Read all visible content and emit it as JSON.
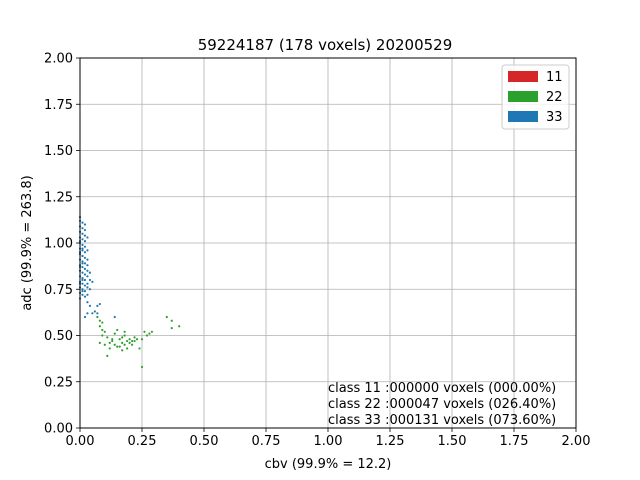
{
  "chart_data": {
    "type": "scatter",
    "title": "59224187 (178 voxels) 20200529",
    "xlabel": "cbv (99.9% = 12.2)",
    "ylabel": "adc (99.9% = 263.8)",
    "xlim": [
      0,
      2
    ],
    "ylim": [
      0,
      2
    ],
    "xticks": [
      "0.00",
      "0.25",
      "0.50",
      "0.75",
      "1.00",
      "1.25",
      "1.50",
      "1.75",
      "2.00"
    ],
    "yticks": [
      "0.00",
      "0.25",
      "0.50",
      "0.75",
      "1.00",
      "1.25",
      "1.50",
      "1.75",
      "2.00"
    ],
    "grid": true,
    "legend_position": "top-right",
    "series": [
      {
        "name": "11",
        "color": "#d62728",
        "points": []
      },
      {
        "name": "22",
        "color": "#2ca02c",
        "points": [
          [
            0.07,
            0.6
          ],
          [
            0.08,
            0.58
          ],
          [
            0.08,
            0.55
          ],
          [
            0.09,
            0.53
          ],
          [
            0.09,
            0.5
          ],
          [
            0.1,
            0.52
          ],
          [
            0.11,
            0.49
          ],
          [
            0.11,
            0.39
          ],
          [
            0.12,
            0.46
          ],
          [
            0.13,
            0.47
          ],
          [
            0.14,
            0.45
          ],
          [
            0.15,
            0.53
          ],
          [
            0.16,
            0.48
          ],
          [
            0.16,
            0.44
          ],
          [
            0.17,
            0.46
          ],
          [
            0.17,
            0.49
          ],
          [
            0.18,
            0.52
          ],
          [
            0.18,
            0.5
          ],
          [
            0.18,
            0.45
          ],
          [
            0.19,
            0.43
          ],
          [
            0.2,
            0.46
          ],
          [
            0.21,
            0.47
          ],
          [
            0.21,
            0.45
          ],
          [
            0.22,
            0.49
          ],
          [
            0.22,
            0.47
          ],
          [
            0.23,
            0.48
          ],
          [
            0.24,
            0.43
          ],
          [
            0.25,
            0.48
          ],
          [
            0.26,
            0.52
          ],
          [
            0.27,
            0.5
          ],
          [
            0.28,
            0.51
          ],
          [
            0.29,
            0.52
          ],
          [
            0.35,
            0.6
          ],
          [
            0.37,
            0.58
          ],
          [
            0.37,
            0.54
          ],
          [
            0.4,
            0.55
          ],
          [
            0.08,
            0.46
          ],
          [
            0.1,
            0.45
          ],
          [
            0.13,
            0.48
          ],
          [
            0.14,
            0.51
          ],
          [
            0.15,
            0.44
          ],
          [
            0.19,
            0.47
          ],
          [
            0.2,
            0.48
          ],
          [
            0.09,
            0.57
          ],
          [
            0.12,
            0.43
          ],
          [
            0.17,
            0.42
          ],
          [
            0.25,
            0.33
          ]
        ]
      },
      {
        "name": "33",
        "color": "#1f77b4",
        "points": [
          [
            0.0,
            1.14
          ],
          [
            0.0,
            1.12
          ],
          [
            0.01,
            1.11
          ],
          [
            0.0,
            1.09
          ],
          [
            0.01,
            1.08
          ],
          [
            0.0,
            1.06
          ],
          [
            0.01,
            1.05
          ],
          [
            0.0,
            1.03
          ],
          [
            0.01,
            1.02
          ],
          [
            0.0,
            1.0
          ],
          [
            0.01,
            0.99
          ],
          [
            0.0,
            0.97
          ],
          [
            0.01,
            0.96
          ],
          [
            0.0,
            0.94
          ],
          [
            0.01,
            0.93
          ],
          [
            0.0,
            0.91
          ],
          [
            0.01,
            0.9
          ],
          [
            0.0,
            0.88
          ],
          [
            0.01,
            0.87
          ],
          [
            0.0,
            0.85
          ],
          [
            0.01,
            0.84
          ],
          [
            0.0,
            0.82
          ],
          [
            0.01,
            0.81
          ],
          [
            0.0,
            0.79
          ],
          [
            0.01,
            0.78
          ],
          [
            0.0,
            0.76
          ],
          [
            0.01,
            0.75
          ],
          [
            0.0,
            0.73
          ],
          [
            0.01,
            0.72
          ],
          [
            0.0,
            0.7
          ],
          [
            0.02,
            1.1
          ],
          [
            0.02,
            1.07
          ],
          [
            0.02,
            1.04
          ],
          [
            0.02,
            1.01
          ],
          [
            0.02,
            0.98
          ],
          [
            0.02,
            0.95
          ],
          [
            0.02,
            0.92
          ],
          [
            0.02,
            0.89
          ],
          [
            0.02,
            0.86
          ],
          [
            0.02,
            0.83
          ],
          [
            0.02,
            0.8
          ],
          [
            0.02,
            0.77
          ],
          [
            0.02,
            0.74
          ],
          [
            0.03,
            1.03
          ],
          [
            0.03,
            0.96
          ],
          [
            0.03,
            0.91
          ],
          [
            0.03,
            0.88
          ],
          [
            0.03,
            0.85
          ],
          [
            0.03,
            0.82
          ],
          [
            0.03,
            0.78
          ],
          [
            0.03,
            0.76
          ],
          [
            0.03,
            0.72
          ],
          [
            0.03,
            0.68
          ],
          [
            0.04,
            0.84
          ],
          [
            0.04,
            0.8
          ],
          [
            0.04,
            0.75
          ],
          [
            0.04,
            0.66
          ],
          [
            0.05,
            0.79
          ],
          [
            0.05,
            0.62
          ],
          [
            0.02,
            0.6
          ],
          [
            0.03,
            0.62
          ],
          [
            0.07,
            0.62
          ],
          [
            0.07,
            0.66
          ],
          [
            0.08,
            0.67
          ],
          [
            0.06,
            0.63
          ],
          [
            0.14,
            0.6
          ],
          [
            0.01,
            0.93
          ],
          [
            0.0,
            0.95
          ],
          [
            0.01,
            0.97
          ],
          [
            0.0,
            1.01
          ],
          [
            0.01,
            0.8
          ],
          [
            0.0,
            0.78
          ],
          [
            0.01,
            0.74
          ],
          [
            0.02,
            0.71
          ],
          [
            0.0,
            0.87
          ],
          [
            0.01,
            0.89
          ]
        ]
      }
    ],
    "annotations": [
      "class 11 :000000 voxels (000.00%)",
      "class 22 :000047 voxels (026.40%)",
      "class 33 :000131 voxels (073.60%)"
    ]
  }
}
